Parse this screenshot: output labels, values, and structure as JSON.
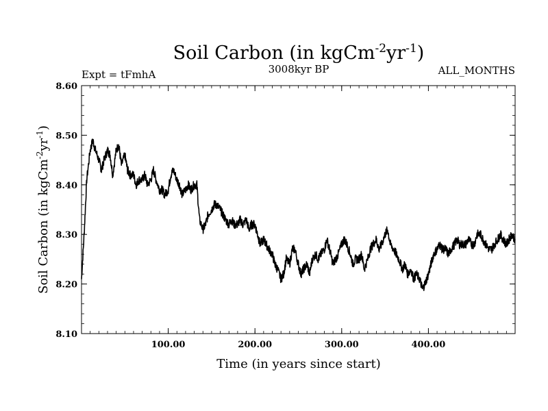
{
  "chart_data": {
    "type": "line",
    "title": "Soil Carbon (in kgCm-2yr-1)",
    "title_parts": {
      "base": "Soil Carbon (in kgCm",
      "exp1": "-2",
      "mid": "yr",
      "exp2": "-1",
      "end": ")"
    },
    "subtitle_left": "Expt = tFmhA",
    "subtitle_center": "3008kyr BP",
    "subtitle_right": "ALL_MONTHS",
    "xlabel": "Time (in years since start)",
    "ylabel": "Soil Carbon (in kgCm-2yr-1)",
    "ylabel_parts": {
      "base": "Soil Carbon (in kgCm",
      "exp1": "-2",
      "mid": "yr",
      "exp2": "-1",
      "end": ")"
    },
    "xlim": [
      0,
      500
    ],
    "ylim": [
      8.1,
      8.6
    ],
    "x_ticks": [
      100,
      200,
      300,
      400
    ],
    "x_tick_labels": [
      "100.00",
      "200.00",
      "300.00",
      "400.00"
    ],
    "y_ticks": [
      8.1,
      8.2,
      8.3,
      8.4,
      8.5,
      8.6
    ],
    "y_tick_labels": [
      "8.10",
      "8.20",
      "8.30",
      "8.40",
      "8.50",
      "8.60"
    ],
    "grid": false,
    "line_color": "#000000",
    "series": [
      {
        "x": [
          0,
          3,
          6,
          10,
          13,
          16,
          20,
          23,
          26,
          30,
          33,
          36,
          40,
          43,
          46,
          50,
          53,
          56,
          60,
          63,
          66,
          70,
          73,
          76,
          80,
          83,
          86,
          90,
          93,
          96,
          100,
          103,
          106,
          110,
          113,
          116,
          120,
          123,
          126,
          130,
          133,
          136,
          140,
          143,
          146,
          150,
          153,
          156,
          160,
          163,
          166,
          170,
          173,
          176,
          180,
          183,
          186,
          190,
          193,
          196,
          200,
          203,
          206,
          210,
          213,
          216,
          220,
          223,
          226,
          230,
          233,
          236,
          240,
          243,
          246,
          250,
          253,
          256,
          260,
          263,
          266,
          270,
          273,
          276,
          280,
          283,
          286,
          290,
          293,
          296,
          300,
          303,
          306,
          310,
          313,
          316,
          320,
          323,
          326,
          330,
          333,
          336,
          340,
          343,
          346,
          350,
          353,
          356,
          360,
          363,
          366,
          370,
          373,
          376,
          380,
          383,
          386,
          390,
          393,
          396,
          400,
          403,
          406,
          410,
          413,
          416,
          420,
          423,
          426,
          430,
          433,
          436,
          440,
          443,
          446,
          450,
          453,
          456,
          460,
          463,
          466,
          470,
          473,
          476,
          480,
          483,
          486,
          490,
          493,
          496,
          500
        ],
        "y": [
          8.21,
          8.3,
          8.41,
          8.47,
          8.49,
          8.47,
          8.45,
          8.43,
          8.45,
          8.47,
          8.46,
          8.42,
          8.47,
          8.48,
          8.44,
          8.46,
          8.43,
          8.42,
          8.42,
          8.4,
          8.41,
          8.41,
          8.42,
          8.4,
          8.41,
          8.43,
          8.41,
          8.39,
          8.39,
          8.38,
          8.39,
          8.42,
          8.43,
          8.41,
          8.4,
          8.38,
          8.39,
          8.4,
          8.39,
          8.4,
          8.4,
          8.33,
          8.31,
          8.32,
          8.34,
          8.35,
          8.36,
          8.36,
          8.35,
          8.34,
          8.33,
          8.32,
          8.33,
          8.32,
          8.32,
          8.33,
          8.32,
          8.33,
          8.31,
          8.32,
          8.32,
          8.3,
          8.28,
          8.29,
          8.28,
          8.27,
          8.26,
          8.24,
          8.23,
          8.21,
          8.22,
          8.25,
          8.24,
          8.27,
          8.27,
          8.24,
          8.22,
          8.23,
          8.24,
          8.22,
          8.25,
          8.26,
          8.25,
          8.26,
          8.27,
          8.29,
          8.27,
          8.24,
          8.25,
          8.26,
          8.28,
          8.29,
          8.28,
          8.26,
          8.24,
          8.25,
          8.25,
          8.26,
          8.23,
          8.25,
          8.27,
          8.28,
          8.29,
          8.27,
          8.28,
          8.3,
          8.31,
          8.28,
          8.27,
          8.26,
          8.25,
          8.23,
          8.24,
          8.22,
          8.23,
          8.21,
          8.22,
          8.21,
          8.19,
          8.2,
          8.22,
          8.24,
          8.26,
          8.27,
          8.28,
          8.27,
          8.27,
          8.26,
          8.27,
          8.28,
          8.29,
          8.28,
          8.28,
          8.28,
          8.29,
          8.28,
          8.28,
          8.3,
          8.3,
          8.29,
          8.28,
          8.27,
          8.27,
          8.28,
          8.29,
          8.3,
          8.29,
          8.28,
          8.29,
          8.3,
          8.29
        ]
      }
    ]
  }
}
